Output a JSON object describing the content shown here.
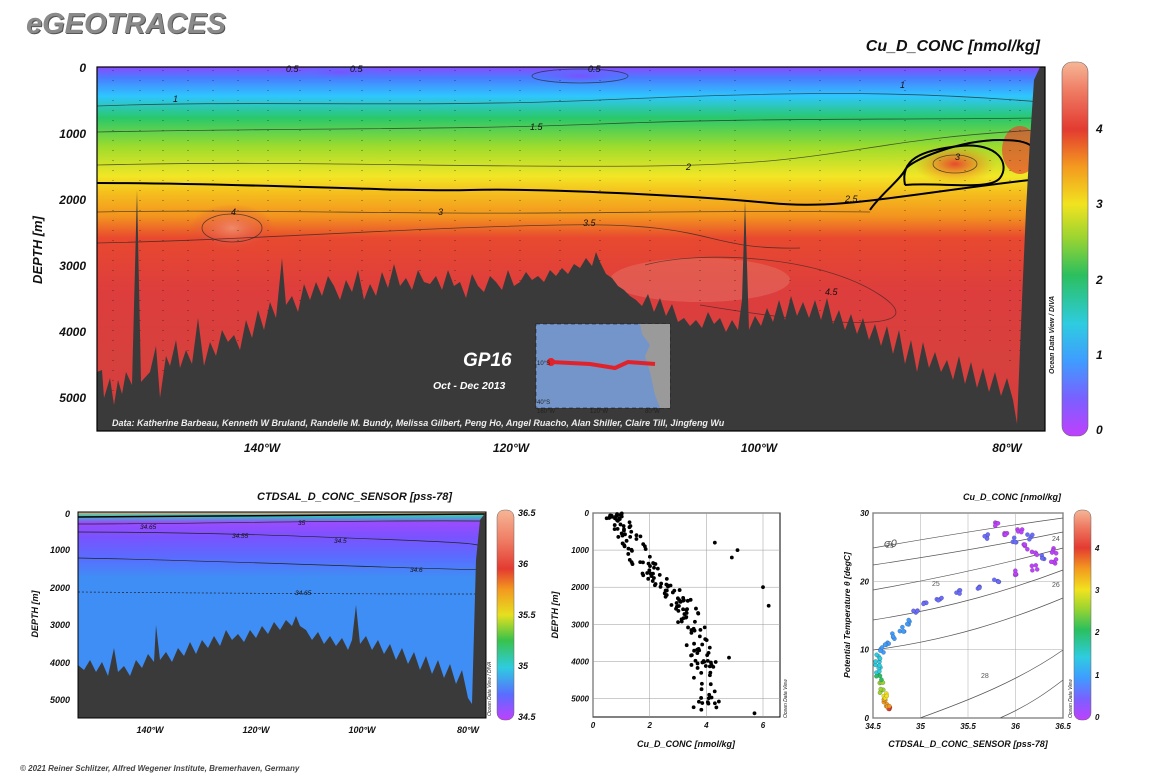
{
  "app_logo": "eGEOTRACES",
  "main_title": "Cu_D_CONC [nmol/kg]",
  "footer": "© 2021 Reiner Schlitzer, Alfred Wegener Institute, Bremerhaven, Germany",
  "colors": {
    "bathymetry": "#3a3a3a",
    "track": "#e0232a"
  },
  "chart_data": [
    {
      "id": "section_cu",
      "type": "heatmap",
      "title": "Cu_D_CONC [nmol/kg]",
      "ylabel": "DEPTH [m]",
      "x_ticks": [
        "140°W",
        "120°W",
        "100°W",
        "80°W"
      ],
      "y_ticks": [
        "0",
        "1000",
        "2000",
        "3000",
        "4000",
        "5000"
      ],
      "ylim": [
        5500,
        0
      ],
      "xlim": [
        -153,
        -75.5
      ],
      "colorbar_ticks": [
        "0",
        "1",
        "2",
        "3",
        "4"
      ],
      "colorbar_range": [
        0,
        4.7
      ],
      "contour_labels": [
        "0.5",
        "0.5",
        "0.5",
        "1",
        "1",
        "1.5",
        "2",
        "2.5",
        "3",
        "3",
        "3.5",
        "4",
        "4.5"
      ],
      "inset": {
        "cruise": "GP16",
        "dates": "Oct - Dec 2013",
        "lat_ticks": [
          "10°S",
          "40°S"
        ],
        "lon_ticks": [
          "160°W",
          "120°W",
          "80°W"
        ]
      },
      "credits": "Data: Katherine Barbeau, Kenneth W Bruland, Randelle M. Bundy, Melissa Gilbert, Peng Ho, Angel Ruacho, Alan Shiller, Claire Till, Jingfeng Wu",
      "watermark": "Ocean Data View / DIVA"
    },
    {
      "id": "section_sal",
      "type": "heatmap",
      "title": "CTDSAL_D_CONC_SENSOR [pss-78]",
      "ylabel": "DEPTH [m]",
      "x_ticks": [
        "140°W",
        "120°W",
        "100°W",
        "80°W"
      ],
      "y_ticks": [
        "0",
        "1000",
        "2000",
        "3000",
        "4000",
        "5000"
      ],
      "ylim": [
        5500,
        0
      ],
      "colorbar_ticks": [
        "34.5",
        "35",
        "35.5",
        "36",
        "36.5"
      ],
      "colorbar_range": [
        34.5,
        36.5
      ],
      "contour_labels": [
        "35",
        "34.65",
        "34.55",
        "34.5",
        "34.6",
        "34.65"
      ],
      "watermark": "Ocean Data View / DIVA"
    },
    {
      "id": "profile_cu",
      "type": "scatter",
      "xlabel": "Cu_D_CONC [nmol/kg]",
      "ylabel": "DEPTH [m]",
      "xlim": [
        0,
        6.6
      ],
      "ylim": [
        5500,
        0
      ],
      "x_ticks": [
        "0",
        "2",
        "4",
        "6"
      ],
      "y_ticks": [
        "0",
        "1000",
        "2000",
        "3000",
        "4000",
        "5000"
      ],
      "trend": [
        [
          0.6,
          30
        ],
        [
          1.0,
          200
        ],
        [
          1.3,
          600
        ],
        [
          1.6,
          1100
        ],
        [
          2.0,
          1600
        ],
        [
          2.6,
          2000
        ],
        [
          3.1,
          2400
        ],
        [
          3.4,
          2800
        ],
        [
          3.7,
          3400
        ],
        [
          3.9,
          4000
        ],
        [
          4.0,
          4500
        ],
        [
          4.0,
          5300
        ]
      ],
      "outliers": [
        [
          4.9,
          1200
        ],
        [
          5.1,
          1000
        ],
        [
          6.0,
          2000
        ],
        [
          6.2,
          2500
        ],
        [
          4.3,
          800
        ],
        [
          4.8,
          3900
        ],
        [
          4.1,
          4900
        ],
        [
          5.7,
          5400
        ]
      ],
      "watermark": "Ocean Data View"
    },
    {
      "id": "ts_diagram",
      "type": "scatter",
      "title": "Cu_D_CONC [nmol/kg]",
      "xlabel": "CTDSAL_D_CONC_SENSOR [pss-78]",
      "ylabel": "Potential Temperature θ [degC]",
      "xlim": [
        34.5,
        36.5
      ],
      "ylim": [
        0,
        30
      ],
      "x_ticks": [
        "34.5",
        "35",
        "35.5",
        "36",
        "36.5"
      ],
      "y_ticks": [
        "0",
        "10",
        "20",
        "30"
      ],
      "sigma_label": "σ0",
      "isopycnals": [
        "23",
        "24",
        "25",
        "26",
        "28"
      ],
      "colorbar_ticks": [
        "0",
        "1",
        "2",
        "3",
        "4"
      ],
      "colorbar_range": [
        0,
        4.7
      ],
      "points_deep": [
        [
          34.68,
          1.6,
          3.9
        ],
        [
          34.66,
          2.0,
          3.7
        ],
        [
          34.64,
          2.6,
          3.4
        ],
        [
          34.62,
          3.2,
          3.1
        ],
        [
          34.6,
          4.0,
          2.8
        ],
        [
          34.58,
          5.0,
          2.5
        ],
        [
          34.56,
          6.0,
          2.2
        ],
        [
          34.55,
          7.0,
          1.9
        ],
        [
          34.55,
          8.0,
          1.7
        ],
        [
          34.56,
          9.0,
          1.5
        ],
        [
          34.6,
          10.0,
          1.4
        ],
        [
          34.65,
          11.0,
          1.3
        ],
        [
          34.72,
          12.0,
          1.2
        ],
        [
          34.8,
          13.0,
          1.1
        ],
        [
          34.88,
          14.0,
          1.0
        ],
        [
          34.95,
          15.5,
          0.9
        ],
        [
          35.05,
          16.5,
          0.8
        ],
        [
          35.2,
          17.5,
          0.7
        ],
        [
          35.4,
          18.5,
          0.6
        ],
        [
          35.6,
          19.2,
          0.55
        ],
        [
          35.8,
          20.0,
          0.5
        ],
        [
          36.0,
          21.2,
          0.45
        ],
        [
          36.2,
          22.0,
          0.4
        ],
        [
          36.4,
          23.0,
          0.35
        ]
      ],
      "points_warm": [
        [
          35.8,
          28.5,
          0.3
        ],
        [
          35.9,
          27.0,
          0.4
        ],
        [
          36.0,
          26.0,
          0.5
        ],
        [
          36.1,
          25.0,
          0.45
        ],
        [
          36.2,
          24.0,
          0.4
        ],
        [
          36.3,
          23.5,
          0.5
        ],
        [
          36.4,
          24.5,
          0.35
        ],
        [
          35.7,
          26.5,
          0.6
        ],
        [
          36.05,
          27.5,
          0.3
        ],
        [
          36.15,
          26.5,
          0.5
        ]
      ],
      "watermark": "Ocean Data View"
    }
  ]
}
